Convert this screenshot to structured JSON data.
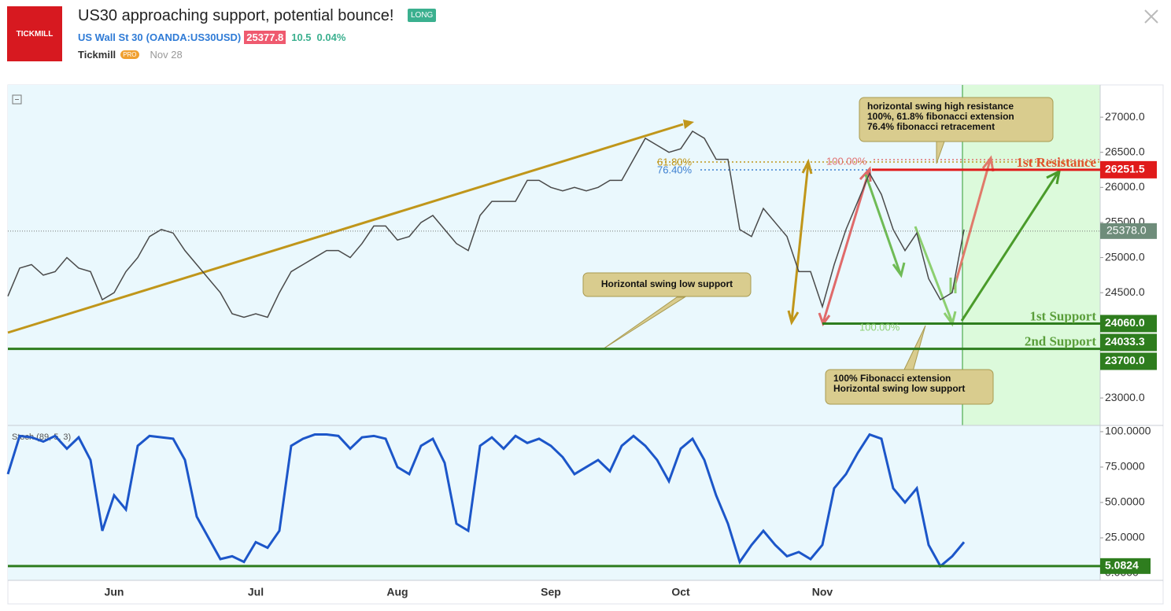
{
  "header": {
    "logo": "TICKMILL",
    "title": "US30 approaching support, potential bounce!",
    "badge": "LONG",
    "symbol": "US Wall St 30",
    "ticker": "(OANDA:US30USD)",
    "price": 25377.8,
    "change": 10.5,
    "change_pct": "0.04%",
    "author": "Tickmill",
    "author_badge": "PRO",
    "date": "Nov 28"
  },
  "chart_data": [
    {
      "type": "line",
      "categories": [
        null,
        null,
        null,
        null,
        null,
        null,
        null,
        null,
        null,
        "Jun",
        null,
        null,
        null,
        null,
        null,
        null,
        null,
        null,
        null,
        null,
        null,
        "Jul",
        null,
        null,
        null,
        null,
        null,
        null,
        null,
        null,
        null,
        null,
        null,
        "Aug",
        null,
        null,
        null,
        null,
        null,
        null,
        null,
        null,
        null,
        null,
        null,
        null,
        "Sep",
        null,
        null,
        null,
        null,
        null,
        null,
        null,
        null,
        null,
        null,
        "Oct",
        null,
        null,
        null,
        null,
        null,
        null,
        null,
        null,
        null,
        null,
        null,
        "Nov",
        null,
        null,
        null,
        null,
        null,
        null,
        null,
        null,
        null,
        null,
        null,
        null
      ],
      "series": [
        {
          "color": "#4a4a4a",
          "values": [
            24450,
            24850,
            24900,
            24750,
            24800,
            25000,
            24850,
            24800,
            24400,
            24500,
            24800,
            25000,
            25300,
            25400,
            25350,
            25100,
            24900,
            24700,
            24500,
            24200,
            24150,
            24200,
            24150,
            24500,
            24800,
            24900,
            25000,
            25100,
            25100,
            25000,
            25200,
            25450,
            25450,
            25250,
            25300,
            25500,
            25600,
            25400,
            25200,
            25100,
            25600,
            25800,
            25800,
            25800,
            26100,
            26100,
            26000,
            25950,
            26000,
            25950,
            26000,
            26100,
            26100,
            26400,
            26700,
            26600,
            26500,
            26550,
            26800,
            26700,
            26400,
            26400,
            25400,
            25300,
            25700,
            25500,
            25300,
            24800,
            24800,
            24300,
            24900,
            25400,
            25800,
            26200,
            25900,
            25400,
            25100,
            25350,
            24700,
            24400,
            24500,
            25400
          ]
        }
      ],
      "ylim": [
        22620,
        27460
      ],
      "yticks": [
        {
          "value": 27000,
          "label": "27000.0"
        },
        {
          "value": 26500,
          "label": "26500.0"
        },
        {
          "value": 26000,
          "label": "26000.0"
        },
        {
          "value": 25500,
          "label": "25500.0"
        },
        {
          "value": 25000,
          "label": "25000.0"
        },
        {
          "value": 24500,
          "label": "24500.0"
        },
        {
          "value": 23000,
          "label": "23000.0"
        }
      ],
      "current_price": {
        "value": 25378,
        "label": "25378.0"
      },
      "levels": [
        {
          "value": 26251.5,
          "name": "1st Resistance",
          "color": "#e01b1b"
        },
        {
          "value": 24060,
          "label": "24060.0",
          "name": "1st Support",
          "color": "#2e7d1e"
        },
        {
          "value": 24033.3,
          "color": "#2e7d1e"
        },
        {
          "value": 23700,
          "label": "23700.0",
          "name": "2nd Support",
          "color": "#2e7d1e"
        }
      ],
      "fib_labels": [
        "61.80%",
        "76.40%",
        "100.00%",
        "100.00%"
      ],
      "annotations": [
        {
          "lines": [
            "horizontal swing high resistance",
            "100%, 61.8% fibonacci extension",
            "76.4% fibonacci retracement"
          ]
        },
        {
          "lines": [
            "Horizontal swing low support"
          ]
        },
        {
          "lines": [
            "100% Fibonacci extension",
            "Horizontal swing low support"
          ]
        }
      ]
    },
    {
      "type": "line",
      "title": "Stoch (89, 5, 3)",
      "series": [
        {
          "color": "#1c56c9",
          "values": [
            70,
            97,
            96,
            93,
            97,
            88,
            96,
            80,
            30,
            55,
            45,
            90,
            97,
            96,
            95,
            80,
            40,
            25,
            10,
            12,
            8,
            22,
            18,
            30,
            90,
            95,
            98,
            98,
            97,
            88,
            96,
            97,
            95,
            75,
            70,
            90,
            95,
            78,
            35,
            30,
            90,
            96,
            88,
            97,
            92,
            95,
            90,
            82,
            70,
            75,
            80,
            72,
            90,
            97,
            90,
            80,
            65,
            88,
            95,
            80,
            55,
            35,
            8,
            20,
            30,
            20,
            12,
            15,
            10,
            20,
            60,
            70,
            85,
            98,
            95,
            60,
            50,
            60,
            20,
            5,
            12,
            22
          ]
        }
      ],
      "ylim": [
        -5,
        103.3
      ],
      "yticks": [
        {
          "value": 100,
          "label": "100.0000"
        },
        {
          "value": 75,
          "label": "75.0000"
        },
        {
          "value": 50,
          "label": "50.0000"
        },
        {
          "value": 25,
          "label": "25.0000"
        },
        {
          "value": 0,
          "label": "0.0000"
        }
      ],
      "level": {
        "value": 5.0824,
        "color": "#2e7d1e"
      }
    }
  ]
}
